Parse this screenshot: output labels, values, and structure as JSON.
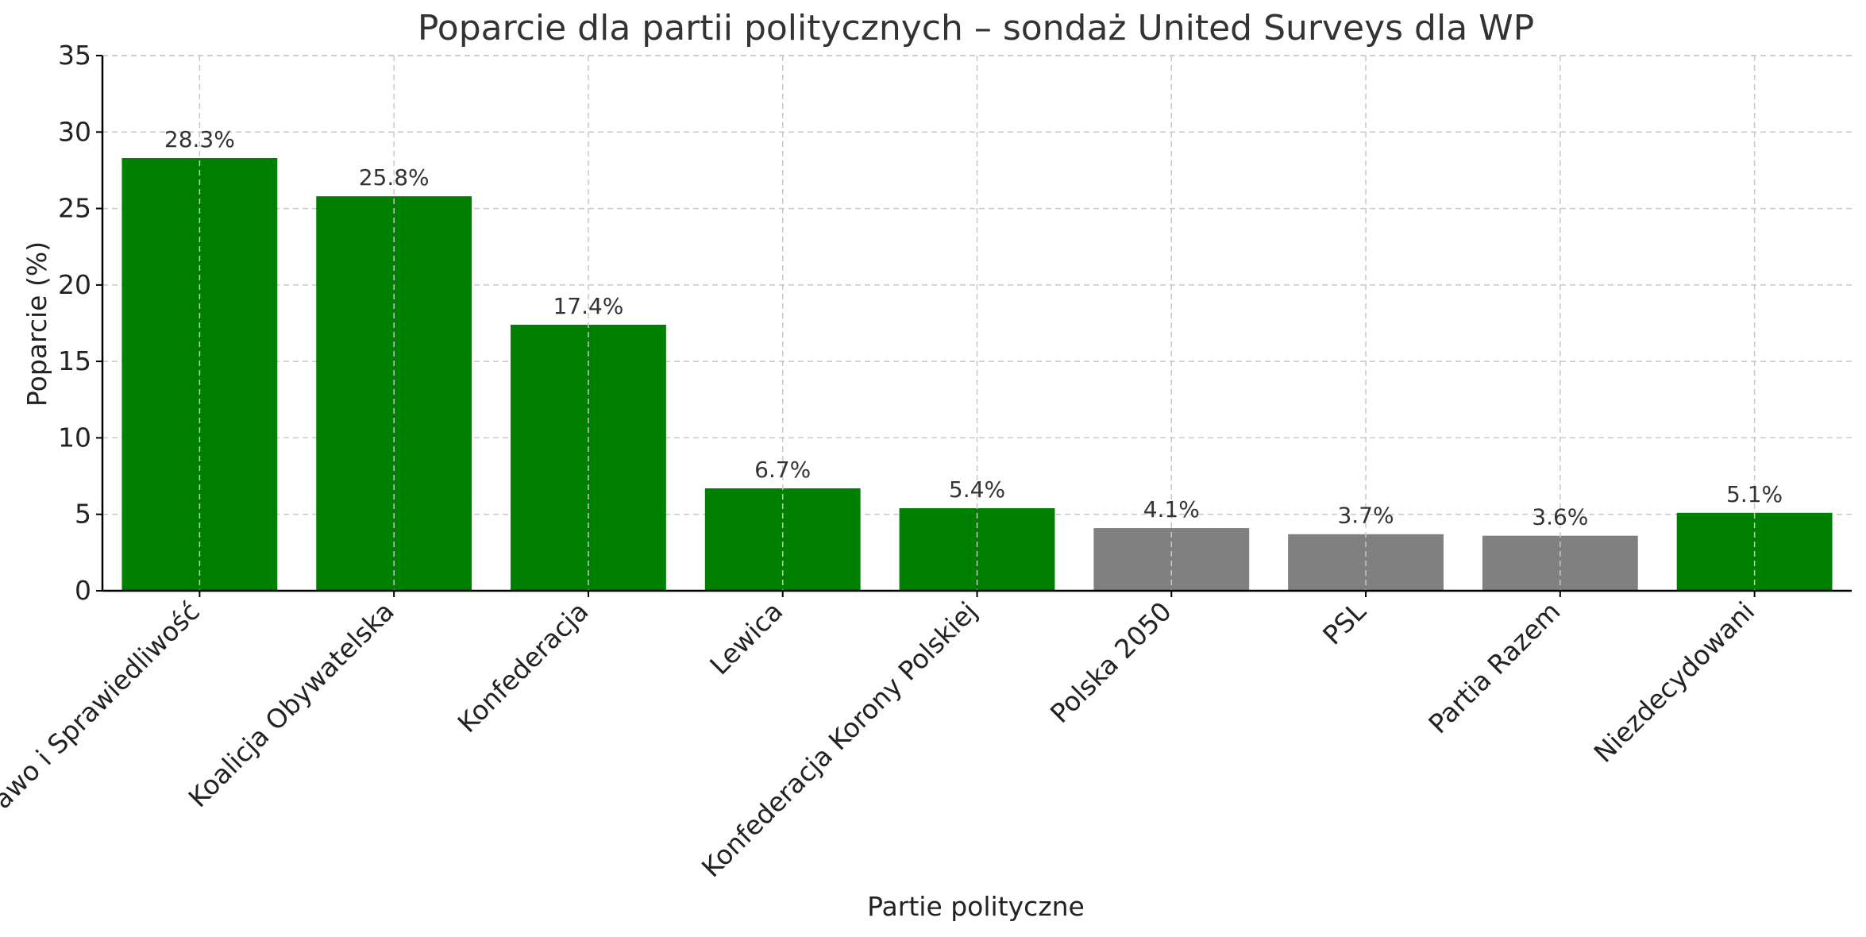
{
  "chart_data": {
    "type": "bar",
    "title": "Poparcie dla partii politycznych – sondaż United Surveys dla WP",
    "xlabel": "Partie polityczne",
    "ylabel": "Poparcie (%)",
    "ylim": [
      0,
      35
    ],
    "yticks": [
      0,
      5,
      10,
      15,
      20,
      25,
      30,
      35
    ],
    "grid": true,
    "categories": [
      "Prawo i Sprawiedliwość",
      "Koalicja Obywatelska",
      "Konfederacja",
      "Lewica",
      "Konfederacja Korony Polskiej",
      "Polska 2050",
      "PSL",
      "Partia Razem",
      "Niezdecydowani"
    ],
    "values": [
      28.3,
      25.8,
      17.4,
      6.7,
      5.4,
      4.1,
      3.7,
      3.6,
      5.1
    ],
    "value_labels": [
      "28.3%",
      "25.8%",
      "17.4%",
      "6.7%",
      "5.4%",
      "4.1%",
      "3.7%",
      "3.6%",
      "5.1%"
    ],
    "bar_colors": [
      "#008000",
      "#008000",
      "#008000",
      "#008000",
      "#008000",
      "#808080",
      "#808080",
      "#808080",
      "#008000"
    ]
  }
}
